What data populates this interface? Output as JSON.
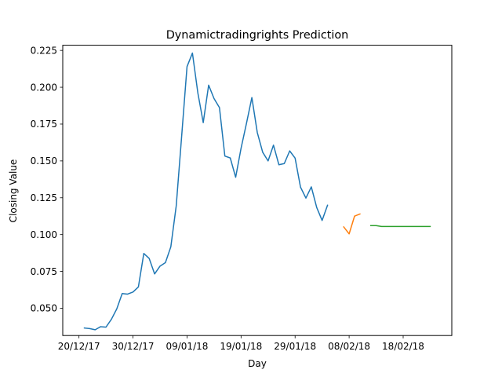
{
  "chart_data": {
    "type": "line",
    "title": "Dynamictradingrights Prediction",
    "xlabel": "Day",
    "ylabel": "Closing Value",
    "x_ticks": [
      "20/12/17",
      "30/12/17",
      "09/01/18",
      "19/01/18",
      "29/01/18",
      "08/02/18",
      "18/02/18"
    ],
    "y_ticks": [
      "0.050",
      "0.075",
      "0.100",
      "0.125",
      "0.150",
      "0.175",
      "0.200",
      "0.225"
    ],
    "xlim": [
      "2017-12-17",
      "2018-02-27"
    ],
    "ylim": [
      0.0315,
      0.2285
    ],
    "grid": false,
    "legend": "none",
    "colors": [
      "#1f77b4",
      "#ff7f0e",
      "#2ca02c"
    ],
    "series": [
      {
        "x": [
          "2017-12-21",
          "2017-12-22",
          "2017-12-23",
          "2017-12-24",
          "2017-12-25",
          "2017-12-26",
          "2017-12-27",
          "2017-12-28",
          "2017-12-29",
          "2017-12-30",
          "2017-12-31",
          "2018-01-01",
          "2018-01-02",
          "2018-01-03",
          "2018-01-04",
          "2018-01-05",
          "2018-01-06",
          "2018-01-07",
          "2018-01-08",
          "2018-01-09",
          "2018-01-10",
          "2018-01-11",
          "2018-01-12",
          "2018-01-13",
          "2018-01-14",
          "2018-01-15",
          "2018-01-16",
          "2018-01-17",
          "2018-01-18",
          "2018-01-19",
          "2018-01-20",
          "2018-01-21",
          "2018-01-22",
          "2018-01-23",
          "2018-01-24",
          "2018-01-25",
          "2018-01-26",
          "2018-01-27",
          "2018-01-28",
          "2018-01-29",
          "2018-01-30",
          "2018-01-31",
          "2018-02-01",
          "2018-02-02",
          "2018-02-03",
          "2018-02-04"
        ],
        "values": [
          0.0366,
          0.0362,
          0.0354,
          0.0375,
          0.0372,
          0.0425,
          0.0496,
          0.06,
          0.0596,
          0.061,
          0.0645,
          0.0872,
          0.0838,
          0.0733,
          0.0786,
          0.081,
          0.0917,
          0.1195,
          0.1665,
          0.214,
          0.2232,
          0.1962,
          0.176,
          0.2014,
          0.1923,
          0.1862,
          0.1533,
          0.152,
          0.1389,
          0.1586,
          0.1755,
          0.193,
          0.1693,
          0.1559,
          0.15,
          0.1607,
          0.1474,
          0.1482,
          0.1568,
          0.1519,
          0.1322,
          0.1248,
          0.1324,
          0.1184,
          0.1096,
          0.1199
        ]
      },
      {
        "x": [
          "2018-02-07",
          "2018-02-08",
          "2018-02-09",
          "2018-02-10"
        ],
        "values": [
          0.1052,
          0.1005,
          0.1125,
          0.114
        ]
      },
      {
        "x": [
          "2018-02-12",
          "2018-02-13",
          "2018-02-14",
          "2018-02-15",
          "2018-02-16",
          "2018-02-17",
          "2018-02-18",
          "2018-02-19",
          "2018-02-20",
          "2018-02-21",
          "2018-02-22",
          "2018-02-23"
        ],
        "values": [
          0.1061,
          0.1061,
          0.1055,
          0.1055,
          0.1055,
          0.1055,
          0.1055,
          0.1055,
          0.1055,
          0.1055,
          0.1055,
          0.1055
        ]
      }
    ]
  }
}
